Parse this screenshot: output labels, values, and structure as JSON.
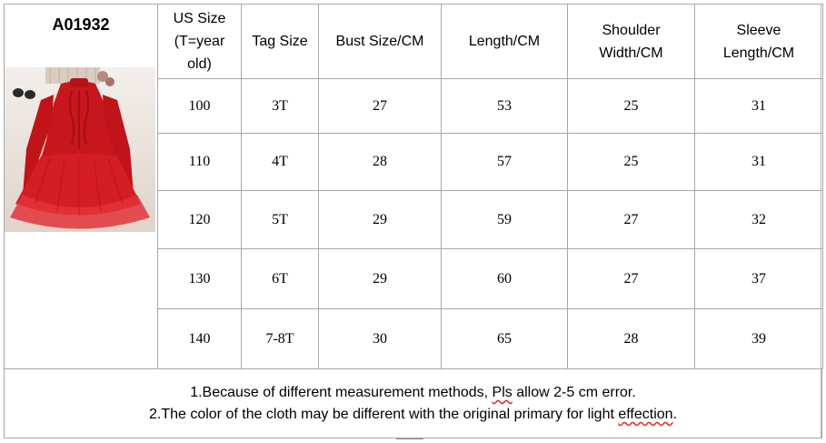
{
  "model_code": "A01932",
  "headers": {
    "us_size_1": "US Size",
    "us_size_2": "(T=year",
    "us_size_3": "old)",
    "tag_size": "Tag Size",
    "bust": "Bust Size/CM",
    "length": "Length/CM",
    "shoulder_1": "Shoulder",
    "shoulder_2": "Width/CM",
    "sleeve_1": "Sleeve",
    "sleeve_2": "Length/CM"
  },
  "rows": [
    {
      "us": "100",
      "tag": "3T",
      "bust": "27",
      "length": "53",
      "shoulder": "25",
      "sleeve": "31"
    },
    {
      "us": "110",
      "tag": "4T",
      "bust": "28",
      "length": "57",
      "shoulder": "25",
      "sleeve": "31"
    },
    {
      "us": "120",
      "tag": "5T",
      "bust": "29",
      "length": "59",
      "shoulder": "27",
      "sleeve": "32"
    },
    {
      "us": "130",
      "tag": "6T",
      "bust": "29",
      "length": "60",
      "shoulder": "27",
      "sleeve": "37"
    },
    {
      "us": "140",
      "tag": "7-8T",
      "bust": "30",
      "length": "65",
      "shoulder": "28",
      "sleeve": "39"
    }
  ],
  "notes": {
    "line1_a": "1.Because of different measurement methods, ",
    "line1_b": "Pls",
    "line1_c": " allow 2-5 cm error.",
    "line2_a": "2.The color of the cloth may be different with the original primary for light ",
    "line2_b": "effection",
    "line2_c": "."
  },
  "colors": {
    "dress": "#c8171c",
    "border": "#a8a8a8"
  }
}
